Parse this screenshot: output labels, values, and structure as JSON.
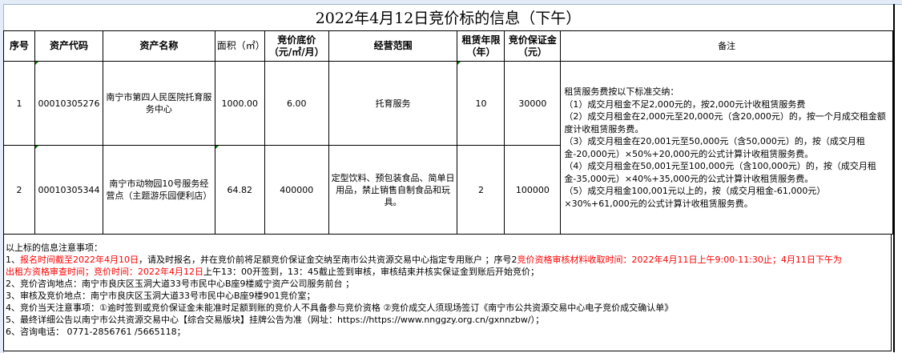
{
  "title": "2022年4月12日竞价标的信息（下午）",
  "headers": [
    "序号",
    "资产代码",
    "资产名称",
    "面积（㎡）",
    "竞价底价（元/㎡/月）",
    "经营范围",
    "租赁年限（年）",
    "竞价保证金（元）",
    "备注"
  ],
  "rows": [
    {
      "no": "1",
      "code": "00010305276",
      "name": "南宁市第四人民医院托育服务中心",
      "area": "1000.00",
      "price": "6.00",
      "scope": "托育服务",
      "years": "10",
      "deposit": "30000"
    },
    {
      "no": "2",
      "code": "00010305344",
      "name": "南宁市动物园10号服务经营点（主题游乐园便利店）",
      "area": "64.82",
      "price": "400000",
      "scope": "定型饮料、预包装食品、简单日用品，禁止销售自制食品和玩具。",
      "years": "2",
      "deposit": "100000"
    }
  ],
  "remark": [
    "租赁服务费按以下标准交纳：",
    "（1）成交月租金不足2,000元的，按2,000元计收租赁服务费",
    "（2）成交月租金在2,000元至20,000元（含20,000元）的，按一个月成交租金额度计收租赁服务费。",
    "（3）成交月租金在20,001元至50,000元（含50,000元）的，按（成交月租金-20,000元）×50%+20,000元的公式计算计收租赁服务费。",
    "（4）成交月租金在50,001元至100,000元（含100,000元）的，按（成交月租金-35,000元）×40%+35,000元的公式计算计收租赁服务费。",
    "（5）成交月租金100,001元以上的，按（成交月租金-61,000元）×30%+61,000元的公式计算计收租赁服务费。"
  ],
  "notes": {
    "heading": "以上标的信息注意事项：",
    "n1_a": "1、",
    "n1_red1": "报名时间截至2022年4月10日",
    "n1_b": "，请及时报名，并在竞价前将足额竞价保证金交纳至南市公共资源交易中心指定专用账户 ；序号2",
    "n1_red2": "竞价资格审核材料收取时间：2022年4月11日上午9:00-11:30止；4月11日下午为",
    "n1_red3": "出租方资格审查时间；竞价时间：2022年4月12日",
    "n1_c": "上午13：00开签到，13：45截止签到审核，审核结束并核实保证金到账后开始竞价；",
    "n2": "2、竞价咨询地点：南宁市良庆区玉洞大道33号市民中心B座9楼威宁资产公司服务前台 ；",
    "n3": "3、审核及竞价地点：南宁市良庆区玉洞大道33号市民中心B座9楼901竞价室；",
    "n4": "4、竞价当天注意事项：①逾时签到或竞价保证金未能准时足额到账的竞价人不具备参与竞价资格 ②竞价成交人须现场签订《南宁市公共资源交易中心电子竞价成交确认单》",
    "n5": "5、最终详细公告以南宁市公共资源交易中心【综合交易版块】挂牌公告为准（网址：https://https://www.nnggzy.org.cn/gxnnzbw/）；",
    "n6": "6、咨询电话： 0771-2856761 /5665118；"
  },
  "colors": {
    "red": "#ff0000",
    "comment_marker": "#008000"
  }
}
